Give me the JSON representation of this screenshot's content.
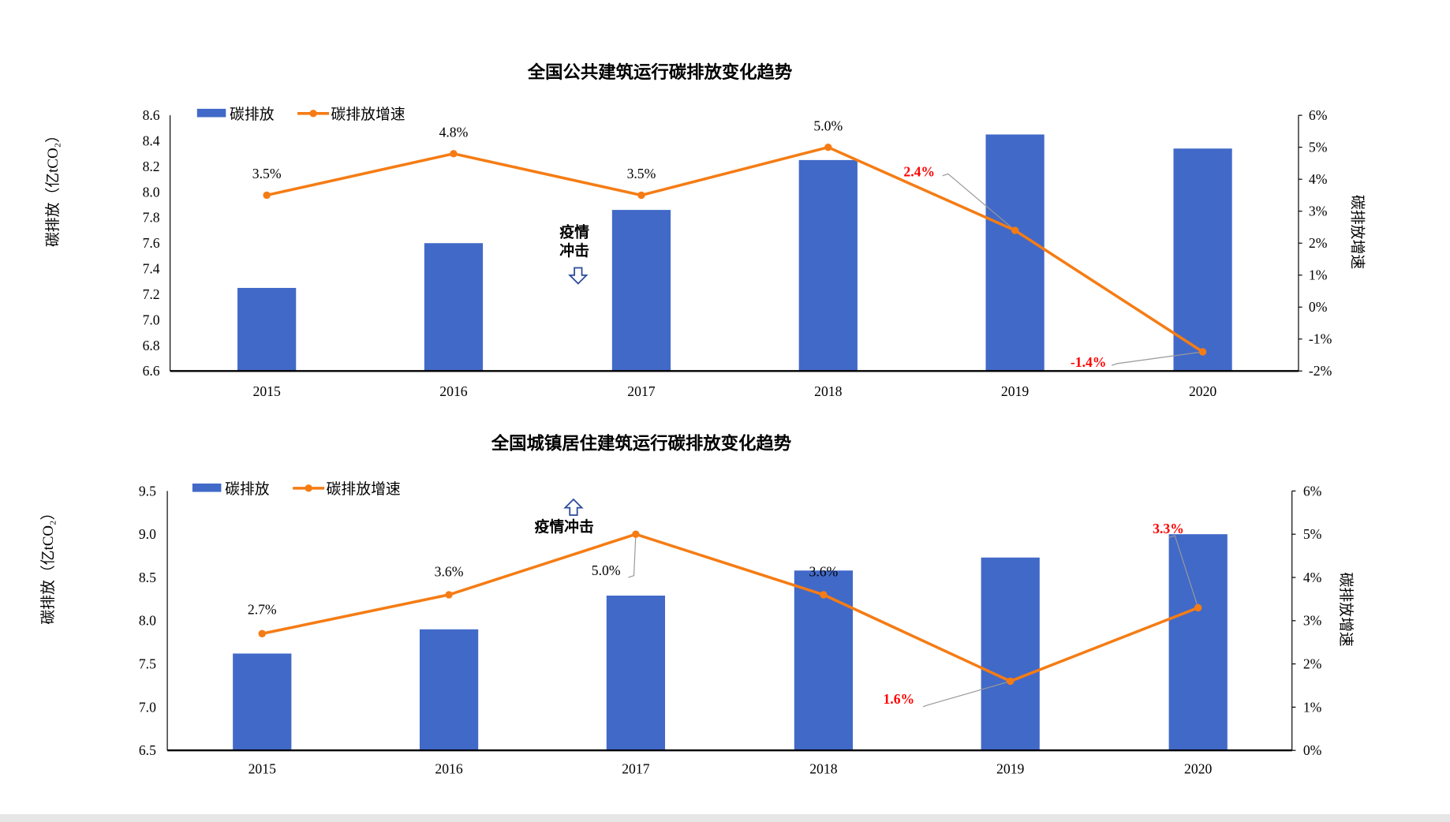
{
  "chart_data": [
    {
      "type": "bar+line",
      "title": "全国公共建筑运行碳排放变化趋势",
      "categories": [
        "2015",
        "2016",
        "2017",
        "2018",
        "2019",
        "2020"
      ],
      "ylabel": "碳排放（亿tCO₂）",
      "y2label": "碳排放增速",
      "ylim": [
        6.6,
        8.6
      ],
      "yticks": [
        "6.6",
        "6.8",
        "7.0",
        "7.2",
        "7.4",
        "7.6",
        "7.8",
        "8.0",
        "8.2",
        "8.4",
        "8.6"
      ],
      "y2lim": [
        -2,
        6
      ],
      "y2ticks": [
        "-2%",
        "-1%",
        "0%",
        "1%",
        "2%",
        "3%",
        "4%",
        "5%",
        "6%"
      ],
      "legend_position": "top-left",
      "series": [
        {
          "name": "碳排放",
          "type": "bar",
          "color": "#4169C8",
          "values": [
            7.25,
            7.6,
            7.86,
            8.25,
            8.45,
            8.34
          ]
        },
        {
          "name": "碳排放增速",
          "type": "line",
          "axis": "right",
          "color": "#F57C14",
          "values": [
            3.5,
            4.8,
            3.5,
            5.0,
            2.4,
            -1.4
          ],
          "labels": [
            "3.5%",
            "4.8%",
            "3.5%",
            "5.0%",
            "2.4%",
            "-1.4%"
          ],
          "highlighted": [
            false,
            false,
            false,
            false,
            true,
            true
          ]
        }
      ],
      "annotation": {
        "text_lines": [
          "疫情",
          "冲击"
        ],
        "arrow": "down"
      }
    },
    {
      "type": "bar+line",
      "title": "全国城镇居住建筑运行碳排放变化趋势",
      "categories": [
        "2015",
        "2016",
        "2017",
        "2018",
        "2019",
        "2020"
      ],
      "ylabel": "碳排放（亿tCO₂）",
      "y2label": "碳排放增速",
      "ylim": [
        6.5,
        9.5
      ],
      "yticks": [
        "6.5",
        "7.0",
        "7.5",
        "8.0",
        "8.5",
        "9.0",
        "9.5"
      ],
      "y2lim": [
        0,
        6
      ],
      "y2ticks": [
        "0%",
        "1%",
        "2%",
        "3%",
        "4%",
        "5%",
        "6%"
      ],
      "legend_position": "top-left",
      "series": [
        {
          "name": "碳排放",
          "type": "bar",
          "color": "#4169C8",
          "values": [
            7.62,
            7.9,
            8.29,
            8.58,
            8.73,
            9.0
          ]
        },
        {
          "name": "碳排放增速",
          "type": "line",
          "axis": "right",
          "color": "#F57C14",
          "values": [
            2.7,
            3.6,
            5.0,
            3.6,
            1.6,
            3.3
          ],
          "labels": [
            "2.7%",
            "3.6%",
            "5.0%",
            "3.6%",
            "1.6%",
            "3.3%"
          ],
          "highlighted": [
            false,
            false,
            false,
            false,
            true,
            true
          ]
        }
      ],
      "annotation": {
        "text_lines": [
          "疫情冲击"
        ],
        "arrow": "up"
      }
    }
  ],
  "colors": {
    "highlight_label": "#FF0000",
    "axis": "#000000"
  }
}
